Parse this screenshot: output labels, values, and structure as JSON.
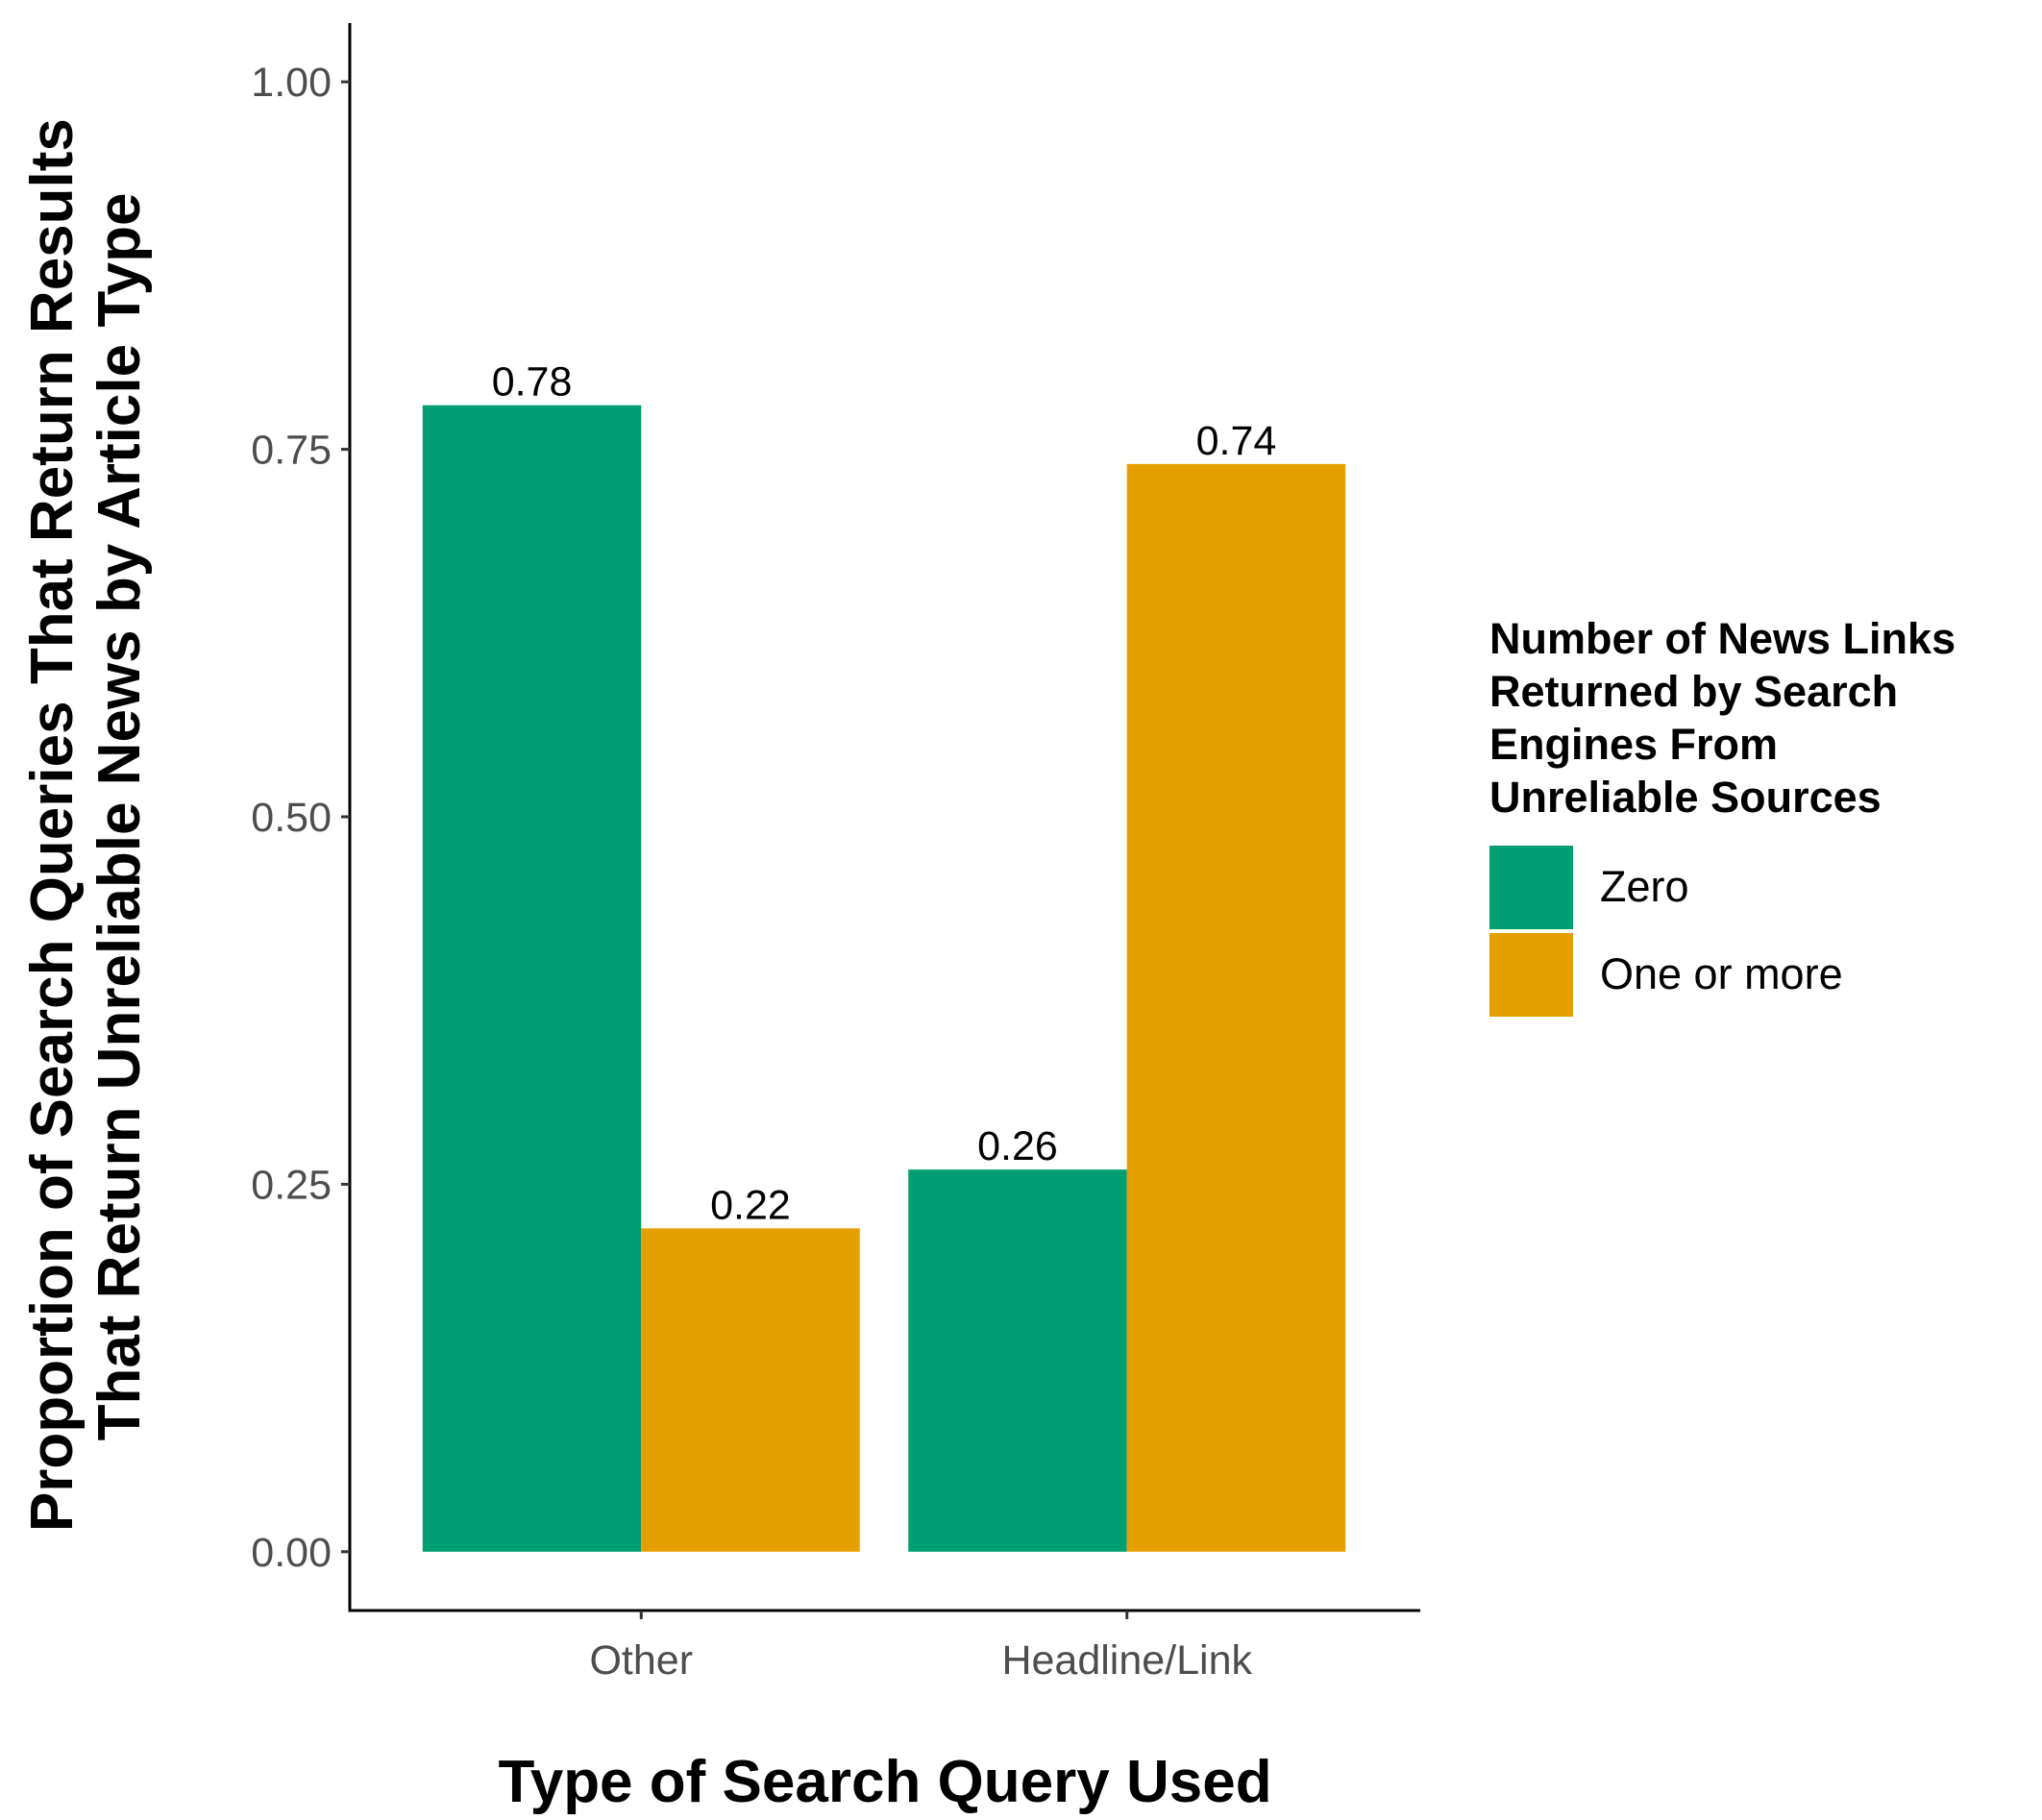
{
  "chart_data": {
    "type": "bar",
    "title": "",
    "xlabel": "Type of Search Query Used",
    "ylabel": "Proportion of Search Queries That Return Results That Return Unreliable News by Article Type",
    "ylabel_lines": [
      "Proportion of Search Queries That Return Results",
      "That Return Unreliable News by Article Type"
    ],
    "categories": [
      "Other",
      "Headline/Link"
    ],
    "series": [
      {
        "name": "Zero",
        "color": "#009E73",
        "values": [
          0.78,
          0.26
        ],
        "labels": [
          "0.78",
          "0.26"
        ]
      },
      {
        "name": "One or more",
        "color": "#E69F00",
        "values": [
          0.22,
          0.74
        ],
        "labels": [
          "0.22",
          "0.74"
        ]
      }
    ],
    "ylim": [
      -0.04,
      1.04
    ],
    "yticks": [
      0,
      0.25,
      0.5,
      0.75,
      1
    ],
    "ytick_labels": [
      "0.00",
      "0.25",
      "0.50",
      "0.75",
      "1.00"
    ],
    "grid": false,
    "legend": {
      "position": "right",
      "title_lines": [
        "Number of News Links",
        "Returned by Search",
        "Engines From",
        "Unreliable Sources"
      ]
    }
  }
}
